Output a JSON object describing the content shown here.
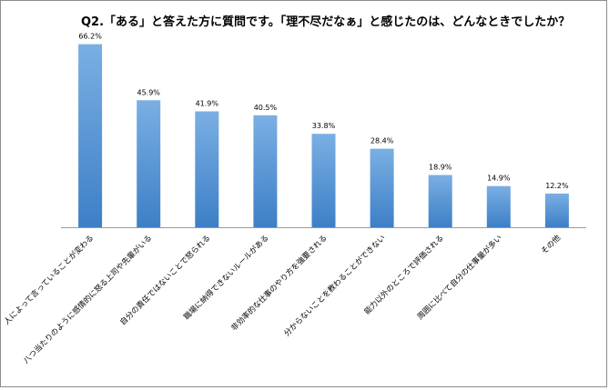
{
  "chart_data": {
    "type": "bar",
    "title": "Q2.「ある」と答えた方に質問です。「理不尽だなぁ」と感じたのは、どんなときでしたか？",
    "categories": [
      "人によって言っていることが変わる",
      "八つ当たりのように感情的に怒る上司や先輩がいる",
      "自分の責任ではないことで怒られる",
      "職場に納得できないルールがある",
      "非効率的な仕事のやり方を強要される",
      "分からないことを教わることができない",
      "能力以外のところで評価される",
      "周囲に比べて自分の仕事量が多い",
      "その他"
    ],
    "values": [
      66.2,
      45.9,
      41.9,
      40.5,
      33.8,
      28.4,
      18.9,
      14.9,
      12.2
    ],
    "value_labels": [
      "66.2%",
      "45.9%",
      "41.9%",
      "40.5%",
      "33.8%",
      "28.4%",
      "18.9%",
      "14.9%",
      "12.2%"
    ],
    "ylim": [
      0,
      70
    ],
    "grid": false,
    "legend": "none",
    "colors": {
      "bar_top": "#7aafe3",
      "bar_bottom": "#3d7fc7",
      "axis": "#9b9b9b",
      "frame": "#8c8c8c"
    }
  }
}
